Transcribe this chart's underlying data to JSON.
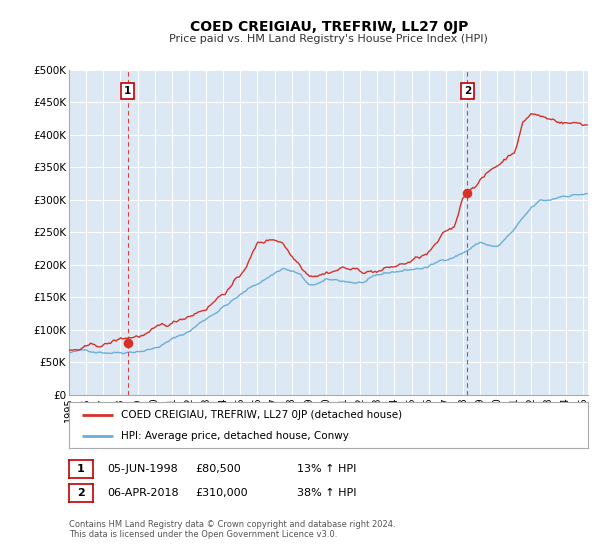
{
  "title": "COED CREIGIAU, TREFRIW, LL27 0JP",
  "subtitle": "Price paid vs. HM Land Registry's House Price Index (HPI)",
  "background_color": "#ffffff",
  "plot_bg_color": "#dce9f5",
  "grid_color": "#ffffff",
  "ylim": [
    0,
    500000
  ],
  "yticks": [
    0,
    50000,
    100000,
    150000,
    200000,
    250000,
    300000,
    350000,
    400000,
    450000,
    500000
  ],
  "ytick_labels": [
    "£0",
    "£50K",
    "£100K",
    "£150K",
    "£200K",
    "£250K",
    "£300K",
    "£350K",
    "£400K",
    "£450K",
    "£500K"
  ],
  "xlim_start": 1995.0,
  "xlim_end": 2025.3,
  "xtick_years": [
    1995,
    1996,
    1997,
    1998,
    1999,
    2000,
    2001,
    2002,
    2003,
    2004,
    2005,
    2006,
    2007,
    2008,
    2009,
    2010,
    2011,
    2012,
    2013,
    2014,
    2015,
    2016,
    2017,
    2018,
    2019,
    2020,
    2021,
    2022,
    2023,
    2024,
    2025
  ],
  "hpi_color": "#6baed6",
  "price_color": "#d73027",
  "marker1_x": 1998.42,
  "marker1_y": 80500,
  "marker2_x": 2018.26,
  "marker2_y": 310000,
  "vline1_x": 1998.42,
  "vline2_x": 2018.26,
  "legend_label1": "COED CREIGIAU, TREFRIW, LL27 0JP (detached house)",
  "legend_label2": "HPI: Average price, detached house, Conwy",
  "annotation1_label": "1",
  "annotation2_label": "2",
  "table_row1": [
    "1",
    "05-JUN-1998",
    "£80,500",
    "13% ↑ HPI"
  ],
  "table_row2": [
    "2",
    "06-APR-2018",
    "£310,000",
    "38% ↑ HPI"
  ],
  "footer": "Contains HM Land Registry data © Crown copyright and database right 2024.\nThis data is licensed under the Open Government Licence v3.0."
}
